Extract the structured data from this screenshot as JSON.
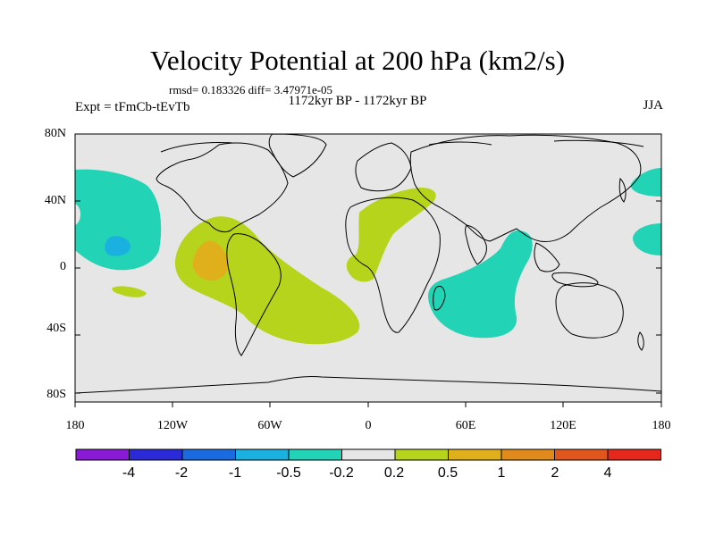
{
  "title": "Velocity Potential at 200 hPa (km2/s)",
  "stats": "rmsd= 0.183326 diff= 3.47971e-05",
  "period": "1172kyr BP - 1172kyr BP",
  "experiment": "Expt = tFmCb-tEvTb",
  "season": "JJA",
  "lat_labels": [
    "80N",
    "40N",
    "0",
    "40S",
    "80S"
  ],
  "lon_labels": [
    "180",
    "120W",
    "60W",
    "0",
    "60E",
    "120E",
    "180"
  ],
  "colorbar": {
    "labels": [
      "-4",
      "-2",
      "-1",
      "-0.5",
      "-0.2",
      "0.2",
      "0.5",
      "1",
      "2",
      "4"
    ],
    "colors": [
      "#8a1ad6",
      "#2a2ad9",
      "#1a6ae0",
      "#1ab0e0",
      "#22d3b6",
      "#e6e6e6",
      "#b6d41c",
      "#e0b01c",
      "#e08a1c",
      "#e0561c",
      "#e6281c"
    ]
  },
  "fill": {
    "neutral": "#e6e6e6",
    "neg_weak": "#22d3b6",
    "neg_mid": "#1ab0e0",
    "pos_weak": "#b6d41c",
    "pos_mid": "#e0b01c"
  }
}
